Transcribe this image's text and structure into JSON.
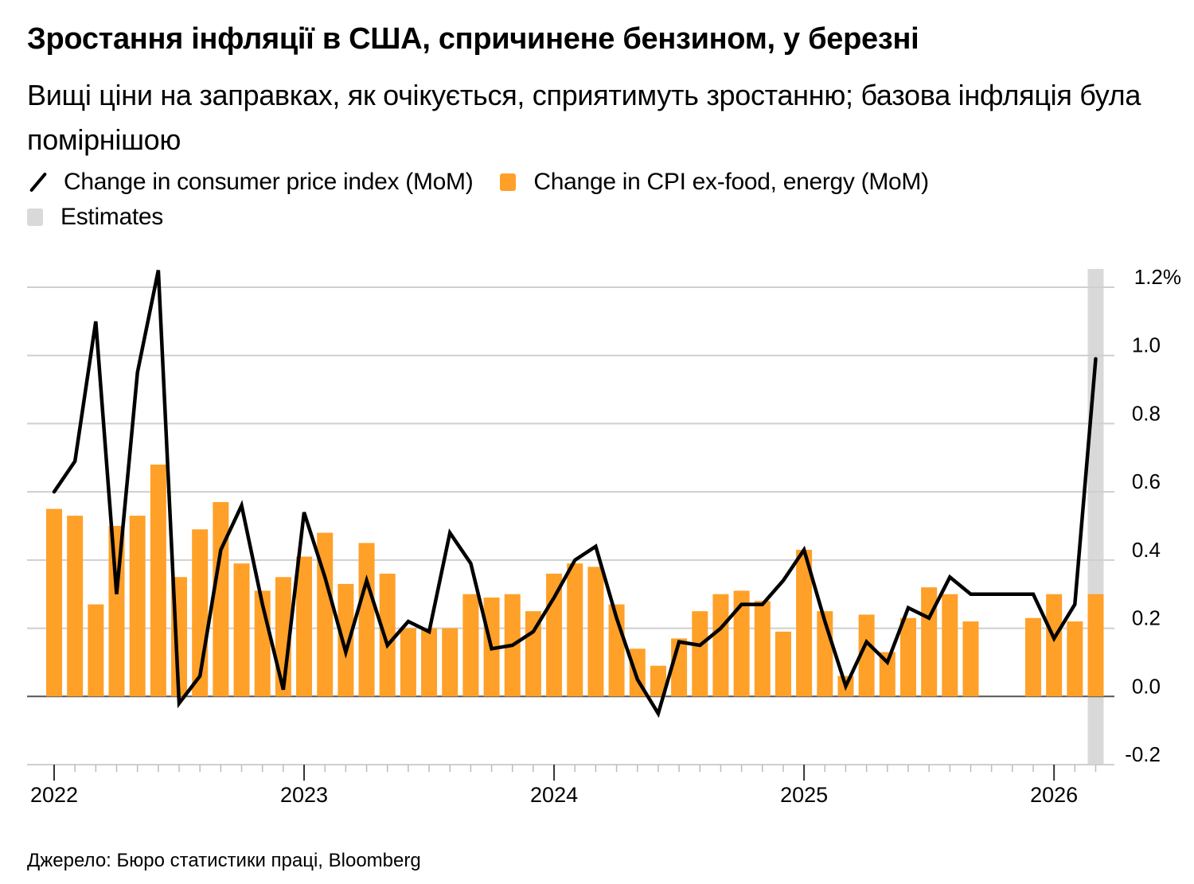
{
  "title": "Зростання інфляції в США, спричинене бензином, у березні",
  "subtitle": "Вищі ціни на заправках, як очікується, сприятимуть зростанню; базова інфляція була помірнішою",
  "legend": [
    {
      "label": "Change in consumer price index (MoM)",
      "type": "line",
      "color": "#000000"
    },
    {
      "label": "Change in CPI ex-food, energy (MoM)",
      "type": "bar",
      "color": "#FFA028"
    },
    {
      "label": "Estimates",
      "type": "shade",
      "color": "#D9D9D9"
    }
  ],
  "source": "Джерело: Бюро статистики праці, Bloomberg",
  "chart_data": {
    "type": "bar+line",
    "title": "Зростання інфляції в США, спричинене бензином, у березні",
    "xlabel": "",
    "ylabel": "",
    "ylim": [
      -0.2,
      1.2
    ],
    "y_ticks": [
      "1.2%",
      "1.0",
      "0.8",
      "0.6",
      "0.4",
      "0.2",
      "0.0",
      "-0.2"
    ],
    "y_tick_values": [
      1.2,
      1.0,
      0.8,
      0.6,
      0.4,
      0.2,
      0.0,
      -0.2
    ],
    "x_tick_labels": [
      "2022",
      "2023",
      "2024",
      "2025",
      "2026"
    ],
    "grid": true,
    "legend_position": "top-left",
    "x": [
      "2022-01",
      "2022-02",
      "2022-03",
      "2022-04",
      "2022-05",
      "2022-06",
      "2022-07",
      "2022-08",
      "2022-09",
      "2022-10",
      "2022-11",
      "2022-12",
      "2023-01",
      "2023-02",
      "2023-03",
      "2023-04",
      "2023-05",
      "2023-06",
      "2023-07",
      "2023-08",
      "2023-09",
      "2023-10",
      "2023-11",
      "2023-12",
      "2024-01",
      "2024-02",
      "2024-03",
      "2024-04",
      "2024-05",
      "2024-06",
      "2024-07",
      "2024-08",
      "2024-09",
      "2024-10",
      "2024-11",
      "2024-12",
      "2025-01",
      "2025-02",
      "2025-03",
      "2025-04",
      "2025-05",
      "2025-06",
      "2025-07",
      "2025-08",
      "2025-09",
      "2025-10",
      "2025-11",
      "2025-12",
      "2026-01",
      "2026-02",
      "2026-03"
    ],
    "series": [
      {
        "name": "Change in consumer price index (MoM)",
        "type": "line",
        "values": [
          0.6,
          0.69,
          1.1,
          0.3,
          0.95,
          1.25,
          -0.02,
          0.06,
          0.43,
          0.56,
          0.27,
          0.02,
          0.54,
          0.35,
          0.13,
          0.34,
          0.15,
          0.22,
          0.19,
          0.48,
          0.39,
          0.14,
          0.15,
          0.19,
          0.29,
          0.4,
          0.44,
          0.23,
          0.05,
          -0.05,
          0.16,
          0.15,
          0.2,
          0.27,
          0.27,
          0.34,
          0.43,
          0.22,
          0.03,
          0.16,
          0.1,
          0.26,
          0.23,
          0.35,
          0.3,
          0.3,
          0.3,
          0.3,
          0.17,
          0.27,
          0.99
        ]
      },
      {
        "name": "Change in CPI ex-food, energy (MoM)",
        "type": "bar",
        "values": [
          0.55,
          0.53,
          0.27,
          0.5,
          0.53,
          0.68,
          0.35,
          0.49,
          0.57,
          0.39,
          0.31,
          0.35,
          0.41,
          0.48,
          0.33,
          0.45,
          0.36,
          0.2,
          0.2,
          0.2,
          0.3,
          0.29,
          0.3,
          0.25,
          0.36,
          0.39,
          0.38,
          0.27,
          0.14,
          0.09,
          0.17,
          0.25,
          0.3,
          0.31,
          0.28,
          0.19,
          0.43,
          0.25,
          0.06,
          0.24,
          0.13,
          0.23,
          0.32,
          0.3,
          0.22,
          null,
          null,
          0.23,
          0.3,
          0.22,
          0.3
        ]
      }
    ],
    "estimates": [
      "2026-03"
    ]
  }
}
